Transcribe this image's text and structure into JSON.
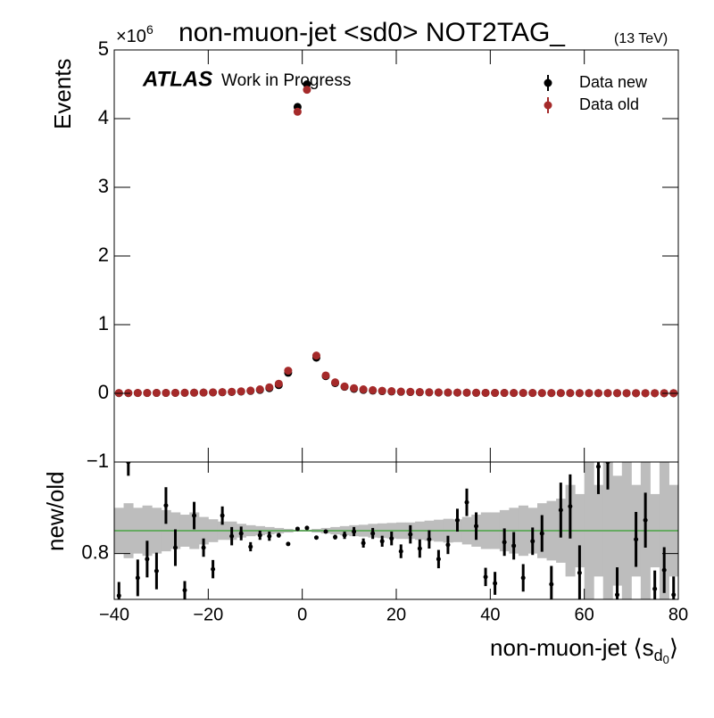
{
  "chart_data": {
    "type": "scatter",
    "title": "non-muon-jet <sd0> NOT2TAG_",
    "energy": "(13 TeV)",
    "multiplier": "×10",
    "multiplier_exp": "6",
    "experiment": "ATLAS",
    "status": "Work in Progress",
    "ylabel": "Events",
    "xlabel": "non-muon-jet ⟨s",
    "xlabel_sub": "d",
    "xlabel_subsub": "0",
    "xlabel_end": "⟩",
    "xlim": [
      -40,
      80
    ],
    "xticks": [
      {
        "value": -40,
        "label": "−40"
      },
      {
        "value": -20,
        "label": "−20"
      },
      0,
      20,
      40,
      60,
      80
    ],
    "ylim": [
      -1,
      5
    ],
    "yticks": [
      {
        "value": -1,
        "label": "−1"
      },
      0,
      1,
      2,
      3,
      4,
      5
    ],
    "legend": "top-right",
    "x": [
      -39,
      -37,
      -35,
      -33,
      -31,
      -29,
      -27,
      -25,
      -23,
      -21,
      -19,
      -17,
      -15,
      -13,
      -11,
      -9,
      -7,
      -5,
      -3,
      -1,
      1,
      3,
      5,
      7,
      9,
      11,
      13,
      15,
      17,
      19,
      21,
      23,
      25,
      27,
      29,
      31,
      33,
      35,
      37,
      39,
      41,
      43,
      45,
      47,
      49,
      51,
      53,
      55,
      57,
      59,
      61,
      63,
      65,
      67,
      69,
      71,
      73,
      75,
      77,
      79
    ],
    "series": [
      {
        "name": "Data new",
        "color": "#000000",
        "values": [
          0.004,
          0.004,
          0.005,
          0.005,
          0.006,
          0.006,
          0.007,
          0.008,
          0.009,
          0.011,
          0.013,
          0.016,
          0.02,
          0.026,
          0.035,
          0.05,
          0.075,
          0.12,
          0.3,
          4.17,
          4.5,
          0.52,
          0.25,
          0.15,
          0.095,
          0.065,
          0.05,
          0.04,
          0.032,
          0.027,
          0.022,
          0.019,
          0.016,
          0.014,
          0.012,
          0.011,
          0.01,
          0.009,
          0.008,
          0.007,
          0.006,
          0.006,
          0.005,
          0.005,
          0.005,
          0.004,
          0.004,
          0.004,
          0.004,
          0.003,
          0.003,
          0.003,
          0.003,
          0.003,
          0.002,
          0.002,
          0.002,
          0.002,
          0.002,
          0.002
        ]
      },
      {
        "name": "Data old",
        "color": "#a52a2a",
        "values": [
          0.005,
          0.005,
          0.006,
          0.006,
          0.007,
          0.007,
          0.008,
          0.009,
          0.01,
          0.012,
          0.015,
          0.018,
          0.023,
          0.03,
          0.04,
          0.058,
          0.088,
          0.14,
          0.33,
          4.1,
          4.42,
          0.55,
          0.26,
          0.16,
          0.1,
          0.075,
          0.058,
          0.047,
          0.038,
          0.032,
          0.026,
          0.022,
          0.019,
          0.016,
          0.014,
          0.013,
          0.012,
          0.01,
          0.009,
          0.008,
          0.007,
          0.007,
          0.006,
          0.006,
          0.006,
          0.005,
          0.005,
          0.005,
          0.005,
          0.004,
          0.004,
          0.004,
          0.004,
          0.004,
          0.003,
          0.003,
          0.003,
          0.003,
          0.003,
          0.003
        ]
      }
    ],
    "ratio": {
      "ylabel": "new/old",
      "ylim": [
        0.7,
        1.0
      ],
      "yticks": [
        0.8
      ],
      "reference": 0.85,
      "reference_color": "#33a02c",
      "band_color": "#bdbdbd",
      "values": [
        0.708,
        1.0,
        0.747,
        0.788,
        0.762,
        0.905,
        0.813,
        0.72,
        0.883,
        0.813,
        0.766,
        0.883,
        0.838,
        0.844,
        0.815,
        0.84,
        0.838,
        0.84,
        0.821,
        0.854,
        0.856,
        0.835,
        0.848,
        0.836,
        0.84,
        0.848,
        0.823,
        0.844,
        0.827,
        0.833,
        0.805,
        0.842,
        0.811,
        0.831,
        0.788,
        0.819,
        0.873,
        0.912,
        0.86,
        0.749,
        0.735,
        0.825,
        0.817,
        0.747,
        0.827,
        0.844,
        0.733,
        0.895,
        0.903,
        0.758,
        null,
        0.99,
        1.0,
        0.71,
        null,
        0.831,
        0.873,
        0.723,
        0.764,
        0.71
      ],
      "errors": [
        0.03,
        0.03,
        0.04,
        0.04,
        0.04,
        0.04,
        0.04,
        0.02,
        0.03,
        0.02,
        0.02,
        0.02,
        0.02,
        0.015,
        0.01,
        0.01,
        0.01,
        0.005,
        0.003,
        0.001,
        0.001,
        0.002,
        0.003,
        0.005,
        0.008,
        0.01,
        0.01,
        0.012,
        0.012,
        0.015,
        0.015,
        0.02,
        0.02,
        0.02,
        0.02,
        0.02,
        0.025,
        0.03,
        0.03,
        0.02,
        0.025,
        0.03,
        0.03,
        0.03,
        0.03,
        0.04,
        0.04,
        0.06,
        0.07,
        0.06,
        null,
        0.06,
        0.06,
        0.06,
        null,
        0.06,
        0.06,
        0.04,
        0.05,
        0.04
      ],
      "band": [
        0.05,
        0.06,
        0.05,
        0.055,
        0.05,
        0.045,
        0.04,
        0.035,
        0.04,
        0.03,
        0.025,
        0.02,
        0.02,
        0.015,
        0.012,
        0.01,
        0.008,
        0.006,
        0.004,
        0.002,
        0.002,
        0.004,
        0.006,
        0.008,
        0.01,
        0.012,
        0.013,
        0.015,
        0.016,
        0.017,
        0.018,
        0.018,
        0.02,
        0.022,
        0.024,
        0.026,
        0.025,
        0.03,
        0.035,
        0.04,
        0.04,
        0.045,
        0.05,
        0.055,
        0.05,
        0.06,
        0.065,
        0.07,
        0.1,
        0.08,
        0.15,
        0.1,
        0.15,
        0.12,
        0.15,
        0.1,
        0.15,
        0.08,
        0.15,
        0.1
      ]
    }
  }
}
